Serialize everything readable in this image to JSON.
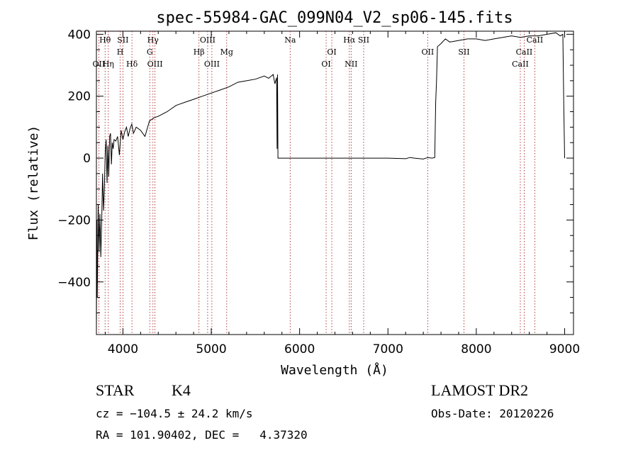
{
  "chart_data": {
    "type": "line",
    "title": "spec-55984-GAC_099N04_V2_sp06-145.fits",
    "xlabel": "Wavelength (Å)",
    "ylabel": "Flux (relative)",
    "xlim": [
      3700,
      9100
    ],
    "ylim": [
      -570,
      410
    ],
    "x_ticks": [
      4000,
      5000,
      6000,
      7000,
      8000,
      9000
    ],
    "y_ticks": [
      -400,
      -200,
      0,
      200,
      400
    ],
    "grid": false,
    "series": [
      {
        "color": "#000000",
        "x": [
          3700,
          3705,
          3710,
          3720,
          3730,
          3740,
          3750,
          3760,
          3770,
          3780,
          3790,
          3800,
          3810,
          3820,
          3830,
          3840,
          3850,
          3860,
          3870,
          3880,
          3890,
          3900,
          3920,
          3940,
          3960,
          3980,
          4000,
          4020,
          4040,
          4060,
          4080,
          4100,
          4120,
          4150,
          4200,
          4250,
          4300,
          4350,
          4400,
          4500,
          4600,
          4700,
          4800,
          4900,
          5000,
          5100,
          5200,
          5300,
          5400,
          5500,
          5600,
          5650,
          5700,
          5720,
          5740,
          5745,
          5750,
          5755,
          5760,
          5800,
          6000,
          6500,
          7000,
          7200,
          7250,
          7300,
          7400,
          7450,
          7500,
          7530,
          7540,
          7550,
          7560,
          7600,
          7650,
          7700,
          7800,
          7900,
          8000,
          8100,
          8200,
          8300,
          8400,
          8500,
          8600,
          8700,
          8800,
          8900,
          8950,
          8980,
          8990,
          9000
        ],
        "y": [
          -560,
          -200,
          -450,
          -150,
          -300,
          -180,
          -320,
          -200,
          -50,
          -170,
          -100,
          20,
          60,
          -80,
          40,
          -60,
          70,
          80,
          -20,
          50,
          30,
          60,
          55,
          70,
          10,
          90,
          60,
          85,
          100,
          70,
          95,
          110,
          80,
          100,
          90,
          70,
          120,
          130,
          135,
          150,
          170,
          180,
          190,
          200,
          210,
          220,
          230,
          245,
          250,
          255,
          265,
          258,
          270,
          240,
          260,
          30,
          270,
          0,
          0,
          0,
          0,
          0,
          0,
          -2,
          2,
          0,
          -3,
          2,
          0,
          2,
          180,
          250,
          360,
          370,
          385,
          375,
          380,
          385,
          385,
          380,
          385,
          390,
          395,
          390,
          395,
          395,
          400,
          405,
          395,
          400,
          170,
          0
        ]
      }
    ],
    "line_marks": [
      {
        "label": "Hθ",
        "x": 3798,
        "row": 0
      },
      {
        "label": "OII",
        "x": 3727,
        "row": 2
      },
      {
        "label": "Hη",
        "x": 3835,
        "row": 2
      },
      {
        "label": "SII",
        "x": 4000,
        "row": 0
      },
      {
        "label": "H",
        "x": 3969,
        "row": 1
      },
      {
        "label": "Hδ",
        "x": 4102,
        "row": 2
      },
      {
        "label": "Hγ",
        "x": 4340,
        "row": 0
      },
      {
        "label": "G",
        "x": 4304,
        "row": 1
      },
      {
        "label": "OIII",
        "x": 4363,
        "row": 2
      },
      {
        "label": "OIII",
        "x": 4959,
        "row": 0
      },
      {
        "label": "Hβ",
        "x": 4861,
        "row": 1
      },
      {
        "label": "OIII",
        "x": 5007,
        "row": 2
      },
      {
        "label": "Mg",
        "x": 5175,
        "row": 1
      },
      {
        "label": "Na",
        "x": 5893,
        "row": 0
      },
      {
        "label": "OI",
        "x": 6364,
        "row": 1
      },
      {
        "label": "OI",
        "x": 6300,
        "row": 2
      },
      {
        "label": "Hα",
        "x": 6563,
        "row": 0
      },
      {
        "label": "SII",
        "x": 6725,
        "row": 0
      },
      {
        "label": "NII",
        "x": 6583,
        "row": 2
      },
      {
        "label": "OII",
        "x": 7450,
        "row": 1
      },
      {
        "label": "SII",
        "x": 7860,
        "row": 1
      },
      {
        "label": "CaII",
        "x": 8542,
        "row": 1
      },
      {
        "label": "CaII",
        "x": 8662,
        "row": 0
      },
      {
        "label": "CaII",
        "x": 8498,
        "row": 2
      }
    ]
  },
  "info": {
    "class": "STAR",
    "subclass": "K4",
    "survey": "LAMOST DR2",
    "cz": "cz = −104.5 ± 24.2 km/s",
    "obs_date": "Obs-Date: 20120226",
    "coords": "RA = 101.90402, DEC =   4.37320"
  }
}
